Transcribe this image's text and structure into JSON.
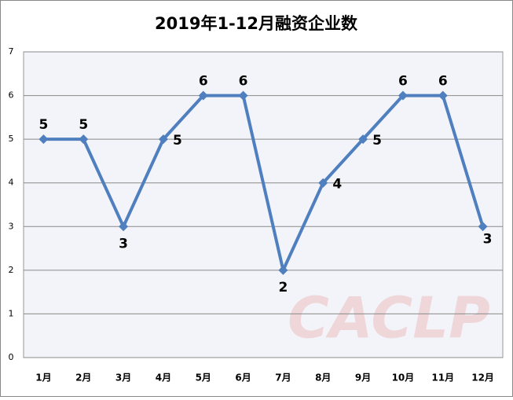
{
  "chart_data": {
    "type": "line",
    "title": "2019年1-12月融资企业数",
    "categories": [
      "1月",
      "2月",
      "3月",
      "4月",
      "5月",
      "6月",
      "7月",
      "8月",
      "9月",
      "10月",
      "11月",
      "12月"
    ],
    "series": [
      {
        "name": "融资企业数",
        "color": "#4f7fbf",
        "values": [
          5,
          5,
          3,
          5,
          6,
          6,
          2,
          4,
          5,
          6,
          6,
          3
        ]
      }
    ],
    "ylim": [
      0,
      7
    ],
    "yticks": [
      0,
      1,
      2,
      3,
      4,
      5,
      6,
      7
    ],
    "grid": true,
    "legend": false,
    "watermark": "CACLP"
  }
}
